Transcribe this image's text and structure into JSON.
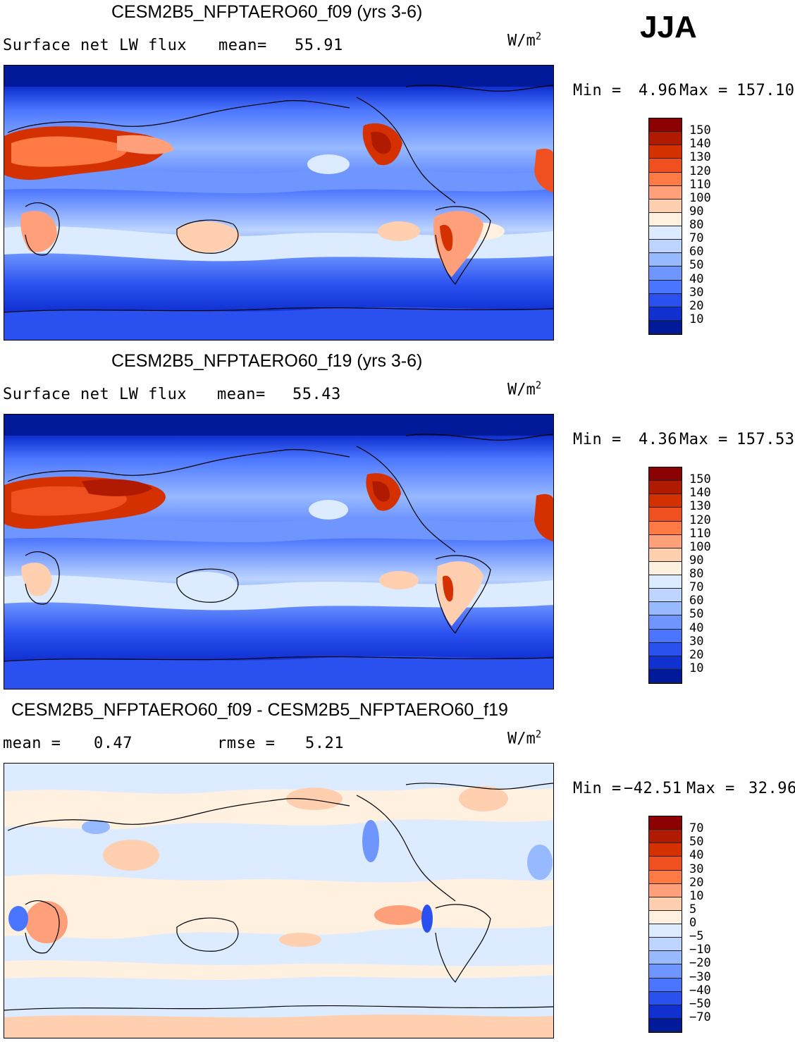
{
  "season": "JJA",
  "units_base": "W/m",
  "units_exp": "2",
  "panels": [
    {
      "title": "CESM2B5_NFPTAERO60_f09 (yrs 3-6)",
      "left_label": "Surface net LW flux",
      "stat_label": "mean=",
      "stat_value": "55.91",
      "min_label": "Min =",
      "min_value": "4.96",
      "max_label": "Max =",
      "max_value": "157.10",
      "levels": [
        "150",
        "140",
        "130",
        "120",
        "110",
        "100",
        "90",
        "80",
        "70",
        "60",
        "50",
        "40",
        "30",
        "20",
        "10"
      ],
      "colors": [
        "#8b0000",
        "#b01a00",
        "#d43000",
        "#f05020",
        "#ff7a45",
        "#ffa07a",
        "#ffcfb0",
        "#fff0e0",
        "#dcebff",
        "#bcd4ff",
        "#97b9ff",
        "#6f96ff",
        "#4a75ff",
        "#2a50f0",
        "#1030d0",
        "#001a99"
      ]
    },
    {
      "title": "CESM2B5_NFPTAERO60_f19 (yrs 3-6)",
      "left_label": "Surface net LW flux",
      "stat_label": "mean=",
      "stat_value": "55.43",
      "min_label": "Min =",
      "min_value": "4.36",
      "max_label": "Max =",
      "max_value": "157.53",
      "levels": [
        "150",
        "140",
        "130",
        "120",
        "110",
        "100",
        "90",
        "80",
        "70",
        "60",
        "50",
        "40",
        "30",
        "20",
        "10"
      ],
      "colors": [
        "#8b0000",
        "#b01a00",
        "#d43000",
        "#f05020",
        "#ff7a45",
        "#ffa07a",
        "#ffcfb0",
        "#fff0e0",
        "#dcebff",
        "#bcd4ff",
        "#97b9ff",
        "#6f96ff",
        "#4a75ff",
        "#2a50f0",
        "#1030d0",
        "#001a99"
      ]
    },
    {
      "title": "CESM2B5_NFPTAERO60_f09 - CESM2B5_NFPTAERO60_f19",
      "left_label": "mean =",
      "left_value": "0.47",
      "stat_label": "rmse =",
      "stat_value": "5.21",
      "min_label": "Min =",
      "min_value": "−42.51",
      "max_label": "Max =",
      "max_value": "32.96",
      "levels": [
        "70",
        "50",
        "40",
        "30",
        "20",
        "10",
        "5",
        "0",
        "−5",
        "−10",
        "−20",
        "−30",
        "−40",
        "−50",
        "−70"
      ],
      "colors": [
        "#8b0000",
        "#b01a00",
        "#d43000",
        "#f05020",
        "#ff7a45",
        "#ffa07a",
        "#ffcfb0",
        "#fff0e0",
        "#dcebff",
        "#bcd4ff",
        "#97b9ff",
        "#6f96ff",
        "#4a75ff",
        "#2a50f0",
        "#1030d0",
        "#001a99"
      ]
    }
  ]
}
